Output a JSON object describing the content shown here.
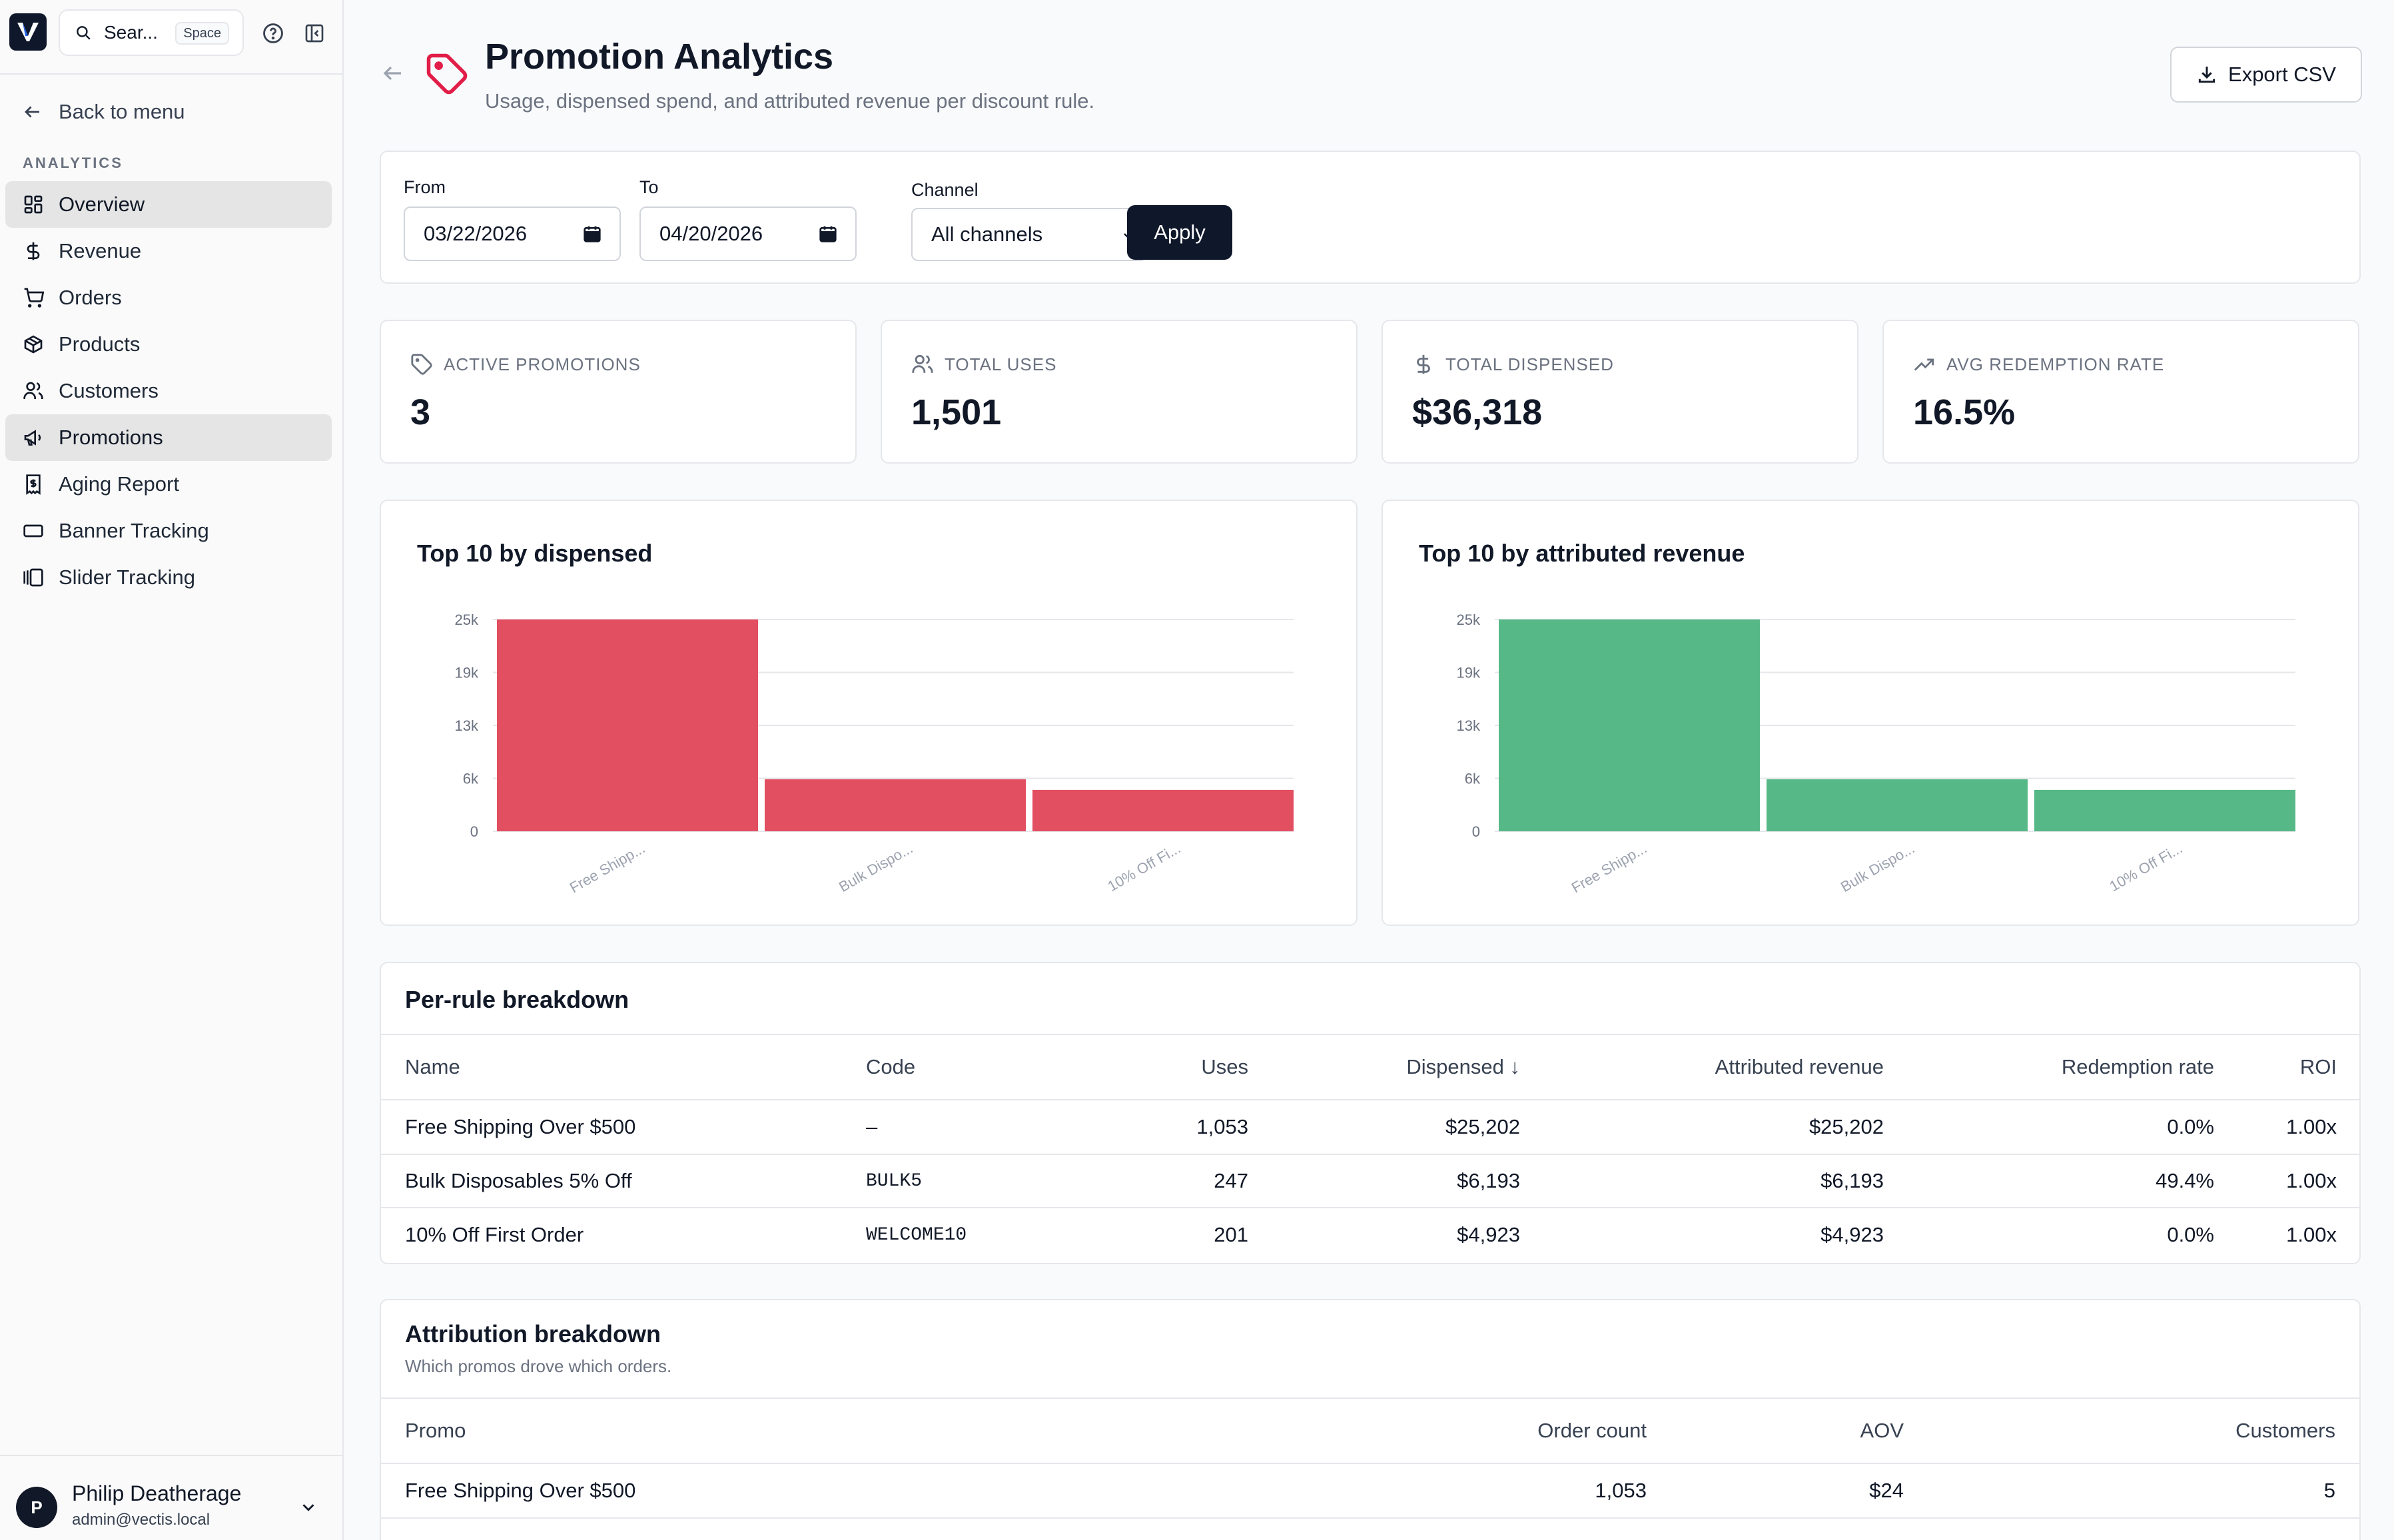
{
  "search": {
    "placeholder": "Sear...",
    "shortcut": "Space"
  },
  "sidebar": {
    "back_label": "Back to menu",
    "section_label": "ANALYTICS",
    "items": [
      {
        "label": "Overview",
        "icon": "grid-icon"
      },
      {
        "label": "Revenue",
        "icon": "dollar-icon"
      },
      {
        "label": "Orders",
        "icon": "cart-icon"
      },
      {
        "label": "Products",
        "icon": "box-icon"
      },
      {
        "label": "Customers",
        "icon": "users-icon"
      },
      {
        "label": "Promotions",
        "icon": "megaphone-icon"
      },
      {
        "label": "Aging Report",
        "icon": "receipt-icon"
      },
      {
        "label": "Banner Tracking",
        "icon": "banner-icon"
      },
      {
        "label": "Slider Tracking",
        "icon": "slider-icon"
      }
    ],
    "user": {
      "initial": "P",
      "name": "Philip Deatherage",
      "email": "admin@vectis.local"
    }
  },
  "header": {
    "title": "Promotion Analytics",
    "subtitle": "Usage, dispensed spend, and attributed revenue per discount rule.",
    "export_label": "Export CSV"
  },
  "filters": {
    "from_label": "From",
    "from_value": "03/22/2026",
    "to_label": "To",
    "to_value": "04/20/2026",
    "channel_label": "Channel",
    "channel_value": "All channels",
    "apply_label": "Apply"
  },
  "kpis": [
    {
      "label": "ACTIVE PROMOTIONS",
      "value": "3",
      "icon": "tag-icon"
    },
    {
      "label": "TOTAL USES",
      "value": "1,501",
      "icon": "users-icon"
    },
    {
      "label": "TOTAL DISPENSED",
      "value": "$36,318",
      "icon": "dollar-icon"
    },
    {
      "label": "AVG REDEMPTION RATE",
      "value": "16.5%",
      "icon": "trending-up-icon"
    }
  ],
  "colors": {
    "dispensed": "#e24f60",
    "revenue": "#56b886",
    "accent": "#e11d48"
  },
  "chart_data": [
    {
      "type": "bar",
      "title": "Top 10 by dispensed",
      "categories": [
        "Free Shipp...",
        "Bulk Dispo...",
        "10% Off Fi..."
      ],
      "values": [
        25202,
        6193,
        4923
      ],
      "yticks": [
        "0",
        "6k",
        "13k",
        "19k",
        "25k"
      ],
      "ylim": [
        0,
        25202
      ],
      "grid": true
    },
    {
      "type": "bar",
      "title": "Top 10 by attributed revenue",
      "categories": [
        "Free Shipp...",
        "Bulk Dispo...",
        "10% Off Fi..."
      ],
      "values": [
        25202,
        6193,
        4923
      ],
      "yticks": [
        "0",
        "6k",
        "13k",
        "19k",
        "25k"
      ],
      "ylim": [
        0,
        25202
      ],
      "grid": true
    }
  ],
  "per_rule": {
    "title": "Per-rule breakdown",
    "columns": [
      "Name",
      "Code",
      "Uses",
      "Dispensed ↓",
      "Attributed revenue",
      "Redemption rate",
      "ROI"
    ],
    "rows": [
      [
        "Free Shipping Over $500",
        "–",
        "1,053",
        "$25,202",
        "$25,202",
        "0.0%",
        "1.00x"
      ],
      [
        "Bulk Disposables 5% Off",
        "BULK5",
        "247",
        "$6,193",
        "$6,193",
        "49.4%",
        "1.00x"
      ],
      [
        "10% Off First Order",
        "WELCOME10",
        "201",
        "$4,923",
        "$4,923",
        "0.0%",
        "1.00x"
      ]
    ]
  },
  "attribution": {
    "title": "Attribution breakdown",
    "subtitle": "Which promos drove which orders.",
    "columns": [
      "Promo",
      "Order count",
      "AOV",
      "Customers"
    ],
    "rows": [
      [
        "Free Shipping Over $500",
        "1,053",
        "$24",
        "5"
      ]
    ]
  }
}
